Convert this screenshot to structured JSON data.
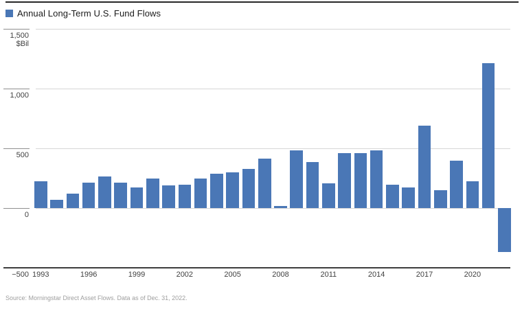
{
  "header": {
    "legend_label": "Annual Long-Term U.S. Fund Flows",
    "legend_swatch_color": "#4a77b6"
  },
  "chart_data": {
    "type": "bar",
    "title": "Annual Long-Term U.S. Fund Flows",
    "ylabel": "$Bil",
    "categories": [
      1993,
      1994,
      1995,
      1996,
      1997,
      1998,
      1999,
      2000,
      2001,
      2002,
      2003,
      2004,
      2005,
      2006,
      2007,
      2008,
      2009,
      2010,
      2011,
      2012,
      2013,
      2014,
      2015,
      2016,
      2017,
      2018,
      2019,
      2020,
      2021,
      2022
    ],
    "values": [
      225,
      70,
      120,
      215,
      265,
      215,
      175,
      250,
      190,
      195,
      250,
      290,
      300,
      330,
      415,
      15,
      485,
      385,
      210,
      460,
      460,
      485,
      195,
      170,
      690,
      150,
      395,
      225,
      1215,
      -370
    ],
    "ylim": [
      -500,
      1500
    ],
    "y_ticks": [
      1500,
      1000,
      500,
      0,
      -500
    ],
    "x_tick_years": [
      1993,
      1996,
      1999,
      2002,
      2005,
      2008,
      2011,
      2014,
      2017,
      2020
    ],
    "bar_color": "#4a77b6",
    "grid": true,
    "legend_position": "top-left"
  },
  "colors": {
    "bar": "#4a77b6",
    "gridline": "#d6d6d6",
    "axis": "#3d3d3d",
    "tick": "#8f8f8f",
    "text": "#404040",
    "title_text": "#1a1a1a",
    "source_text": "#9e9e9e"
  },
  "source_note": "Source: Morningstar Direct Asset Flows. Data as of Dec. 31, 2022."
}
